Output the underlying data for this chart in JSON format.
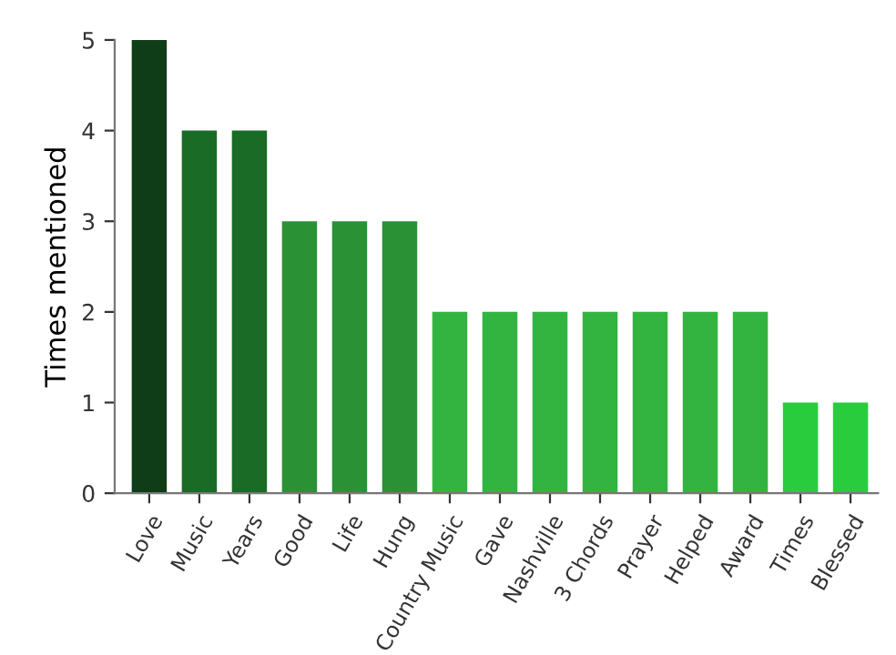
{
  "chart_data": {
    "type": "bar",
    "ylabel": "Times mentioned",
    "categories": [
      "Love",
      "Music",
      "Years",
      "Good",
      "Life",
      "Hung",
      "Country Music",
      "Gave",
      "Nashville",
      "3 Chords",
      "Prayer",
      "Helped",
      "Award",
      "Times",
      "Blessed"
    ],
    "values": [
      5,
      4,
      4,
      3,
      3,
      3,
      2,
      2,
      2,
      2,
      2,
      2,
      2,
      1,
      1
    ],
    "colors": [
      "#0f3d17",
      "#1a6b25",
      "#1a6b25",
      "#2a9235",
      "#2a9235",
      "#2a9235",
      "#33b441",
      "#33b441",
      "#33b441",
      "#33b441",
      "#33b441",
      "#33b441",
      "#33b441",
      "#28cc3d",
      "#28cc3d"
    ],
    "ylim": [
      0,
      5
    ],
    "yticks": [
      0,
      1,
      2,
      3,
      4,
      5
    ],
    "grid": false,
    "legend": false
  }
}
